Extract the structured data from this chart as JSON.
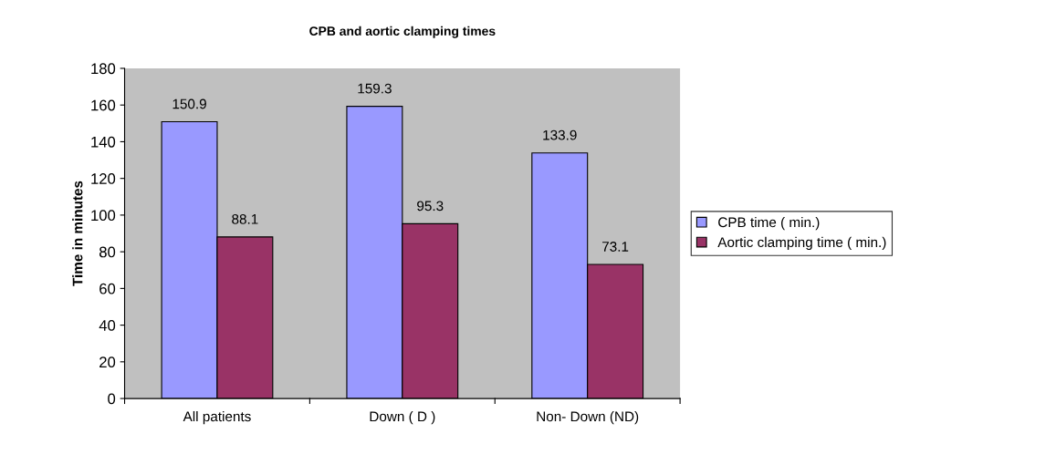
{
  "chart_data": {
    "type": "bar",
    "title": "CPB and aortic clamping times",
    "ylabel": "Time in minutes",
    "categories": [
      "All patients",
      "Down ( D )",
      "Non- Down (ND)"
    ],
    "series": [
      {
        "name": "CPB time ( min.)",
        "color": "#9999ff",
        "values": [
          150.9,
          159.3,
          133.9
        ]
      },
      {
        "name": "Aortic clamping time ( min.)",
        "color": "#993366",
        "values": [
          88.1,
          95.3,
          73.1
        ]
      }
    ],
    "ylim": [
      0,
      180
    ],
    "yticks": [
      0,
      20,
      40,
      60,
      80,
      100,
      120,
      140,
      160,
      180
    ],
    "data_labels": true,
    "grid": false,
    "legend": "right"
  }
}
